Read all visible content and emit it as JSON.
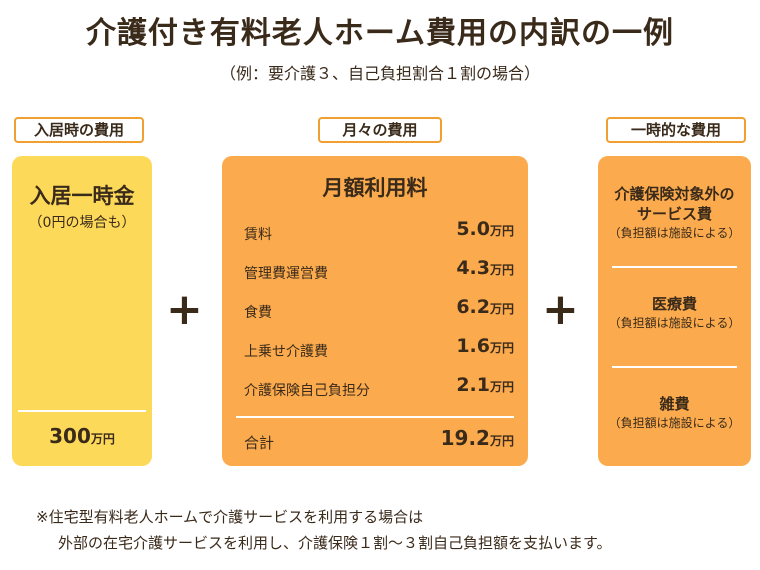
{
  "title": "介護付き有料老人ホーム費用の内訳の一例",
  "subtitle": "（例：要介護３、自己負担割合１割の場合）",
  "labels": {
    "entry": "入居時の費用",
    "monthly": "月々の費用",
    "onetime": "一時的な費用"
  },
  "entry_card": {
    "title": "入居一時金",
    "note": "（0円の場合も）",
    "total_value": "300",
    "total_unit": "万円"
  },
  "monthly_card": {
    "title": "月額利用料",
    "unit": "万円",
    "items": [
      {
        "name": "賃料",
        "value": "5.0"
      },
      {
        "name": "管理費運営費",
        "value": "4.3"
      },
      {
        "name": "食費",
        "value": "6.2"
      },
      {
        "name": "上乗せ介護費",
        "value": "1.6"
      },
      {
        "name": "介護保険自己負担分",
        "value": "2.1"
      }
    ],
    "total_label": "合計",
    "total_value": "19.2"
  },
  "onetime_card": {
    "items": [
      {
        "name_line1": "介護保険対象外の",
        "name_line2": "サービス費",
        "note": "（負担額は施設による）"
      },
      {
        "name_line1": "医療費",
        "note": "（負担額は施設による）"
      },
      {
        "name_line1": "雑費",
        "note": "（負担額は施設による）"
      }
    ]
  },
  "plus_symbol": "+",
  "footnote": {
    "line1": "※住宅型有料老人ホームで介護サービスを利用する場合は",
    "line2": "外部の在宅介護サービスを利用し、介護保険１割～３割自己負担額を支払います。"
  },
  "colors": {
    "yellow": "#fdd95a",
    "orange": "#fbab4d",
    "pill_border": "#f0a030",
    "text": "#3a2a1a"
  }
}
